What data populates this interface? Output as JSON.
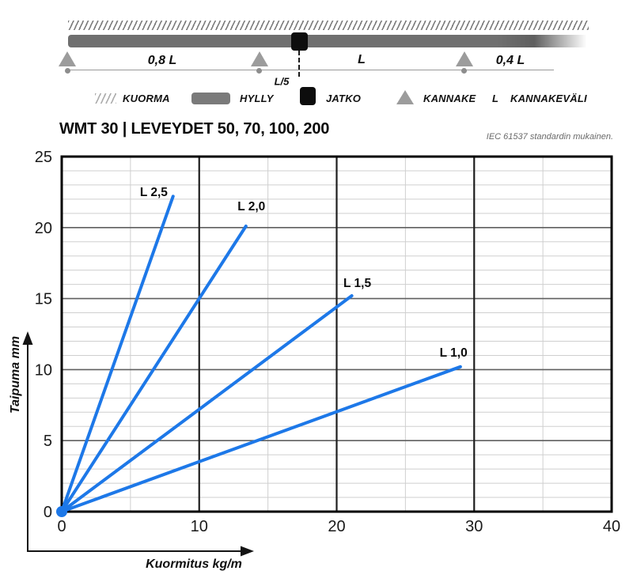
{
  "schematic": {
    "spans": [
      "0,8 L",
      "L",
      "0,4 L"
    ],
    "joint_gap_label": "L/5",
    "legend": [
      {
        "label": "KUORMA"
      },
      {
        "label": "HYLLY"
      },
      {
        "label": "JATKO"
      },
      {
        "label": "KANNAKE"
      },
      {
        "symbol": "L",
        "label": "KANNAKEVÄLI"
      }
    ]
  },
  "header": {
    "title": "WMT 30 | LEVEYDET 50, 70, 100, 200",
    "note": "IEC 61537 standardin mukainen."
  },
  "chart_data": {
    "type": "line",
    "title": "WMT 30 | LEVEYDET 50, 70, 100, 200",
    "xlabel": "Kuormitus kg/m",
    "ylabel": "Taipuma mm",
    "xlim": [
      0,
      40
    ],
    "ylim": [
      0,
      25
    ],
    "x_ticks": [
      0,
      10,
      20,
      30,
      40
    ],
    "y_ticks": [
      0,
      5,
      10,
      15,
      20,
      25
    ],
    "x_minor_step": 5,
    "y_minor_step": 1,
    "grid": true,
    "legend_position": "inline-labels",
    "line_color": "#1d78e8",
    "series": [
      {
        "name": "L 2,5",
        "points": [
          [
            0,
            0
          ],
          [
            8.1,
            22.2
          ]
        ],
        "label_xy": [
          6.7,
          22.5
        ]
      },
      {
        "name": "L 2,0",
        "points": [
          [
            0,
            0
          ],
          [
            13.4,
            20.1
          ]
        ],
        "label_xy": [
          13.8,
          21.5
        ]
      },
      {
        "name": "L 1,5",
        "points": [
          [
            0,
            0
          ],
          [
            21.1,
            15.2
          ]
        ],
        "label_xy": [
          21.5,
          16.1
        ]
      },
      {
        "name": "L 1,0",
        "points": [
          [
            0,
            0
          ],
          [
            29.0,
            10.2
          ]
        ],
        "label_xy": [
          28.5,
          11.2
        ]
      }
    ]
  },
  "colors": {
    "line": "#1d78e8",
    "beam": "#6f6f6f",
    "support": "#9c9c9c",
    "joint": "#0d0d0d"
  }
}
